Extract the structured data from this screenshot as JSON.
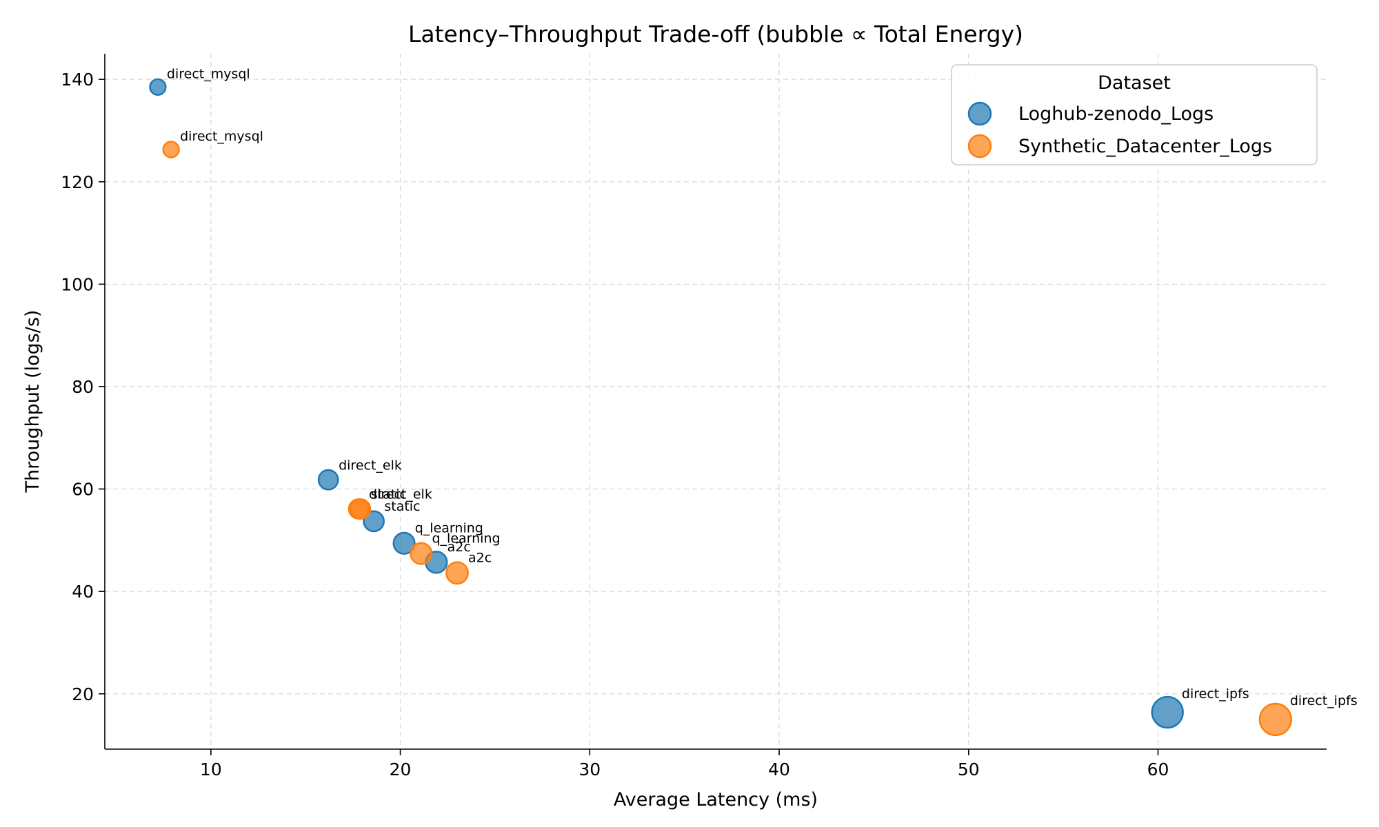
{
  "chart_data": {
    "type": "scatter",
    "title": "Latency–Throughput Trade-off (bubble ∝ Total Energy)",
    "xlabel": "Average Latency (ms)",
    "ylabel": "Throughput (logs/s)",
    "xlim": [
      4.4,
      68.9
    ],
    "ylim": [
      9.2,
      145
    ],
    "xticks": [
      10,
      20,
      30,
      40,
      50,
      60
    ],
    "yticks": [
      20,
      40,
      60,
      80,
      100,
      120,
      140
    ],
    "grid": true,
    "legend": {
      "title": "Dataset",
      "placement": "top-right"
    },
    "series": [
      {
        "name": "Loghub-zenodo_Logs",
        "color": "#1f77b4",
        "points": [
          {
            "label": "direct_mysql",
            "x": 7.2,
            "y": 138.5,
            "size": 0.4
          },
          {
            "label": "direct_elk",
            "x": 16.2,
            "y": 61.8,
            "size": 0.62
          },
          {
            "label": "static",
            "x": 18.6,
            "y": 53.7,
            "size": 0.66
          },
          {
            "label": "q_learning",
            "x": 20.2,
            "y": 49.4,
            "size": 0.72
          },
          {
            "label": "a2c",
            "x": 21.9,
            "y": 45.7,
            "size": 0.74
          },
          {
            "label": "direct_ipfs",
            "x": 60.5,
            "y": 16.4,
            "size": 1.55
          }
        ]
      },
      {
        "name": "Synthetic_Datacenter_Logs",
        "color": "#ff7f0e",
        "points": [
          {
            "label": "direct_mysql",
            "x": 7.9,
            "y": 126.3,
            "size": 0.4
          },
          {
            "label": "direct_elk",
            "x": 17.8,
            "y": 56.1,
            "size": 0.62
          },
          {
            "label": "static",
            "x": 17.9,
            "y": 56.1,
            "size": 0.62
          },
          {
            "label": "q_learning",
            "x": 21.1,
            "y": 47.4,
            "size": 0.72
          },
          {
            "label": "a2c",
            "x": 23.0,
            "y": 43.6,
            "size": 0.76
          },
          {
            "label": "direct_ipfs",
            "x": 66.2,
            "y": 15.0,
            "size": 1.62
          }
        ]
      }
    ]
  }
}
